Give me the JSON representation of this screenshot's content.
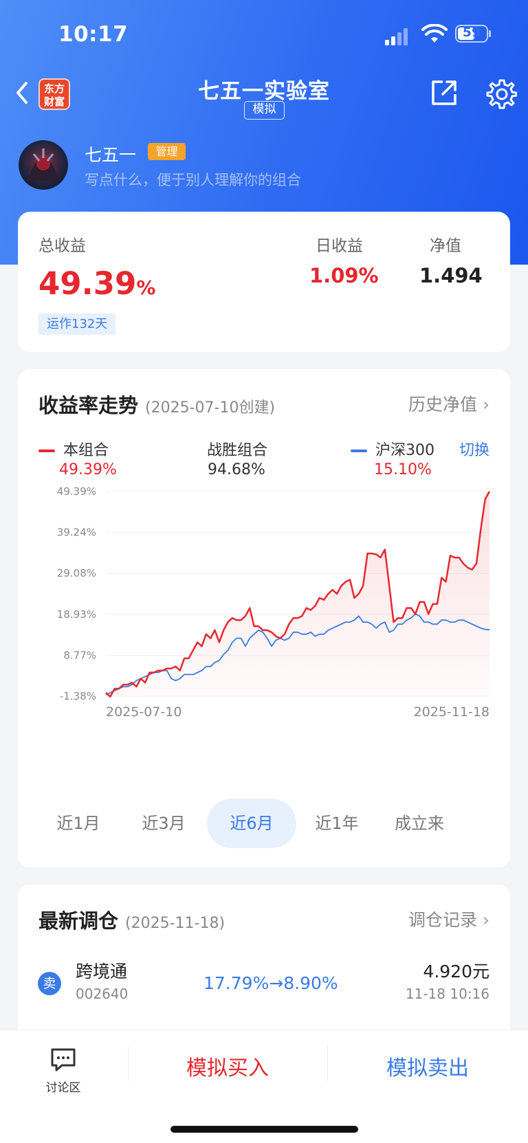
{
  "status_bar": {
    "time": "10:17",
    "battery": "59"
  },
  "nav": {
    "logo_text_1": "东方",
    "logo_text_2": "财富",
    "title": "七五一实验室",
    "tag": "模拟"
  },
  "profile": {
    "name": "七五一",
    "badge": "管理",
    "bio": "写点什么，便于别人理解你的组合"
  },
  "summary": {
    "total_label": "总收益",
    "total_value": "49.39",
    "total_unit": "%",
    "running_days": "运作132天",
    "daily_label": "日收益",
    "daily_value": "1.09%",
    "nav_label": "净值",
    "nav_value": "1.494"
  },
  "trend": {
    "title": "收益率走势",
    "created": "(2025-07-10创建)",
    "history_link": "历史净值",
    "switch": "切换",
    "legend": [
      {
        "name": "本组合",
        "value": "49.39%",
        "color": "#e6272f"
      },
      {
        "name": "战胜组合",
        "value": "94.68%",
        "color": "#333333"
      },
      {
        "name": "沪深300",
        "value": "15.10%",
        "color": "#3a7be4"
      }
    ],
    "tabs": [
      "近1月",
      "近3月",
      "近6月",
      "近1年",
      "成立来"
    ],
    "active_tab": 2
  },
  "chart_data": {
    "type": "line",
    "y_ticks": [
      "49.39%",
      "39.24%",
      "29.08%",
      "18.93%",
      "8.77%",
      "-1.38%"
    ],
    "ylim": [
      -1.38,
      49.39
    ],
    "x_labels": [
      "2025-07-10",
      "2025-11-18"
    ],
    "series": [
      {
        "name": "本组合",
        "color": "#e6272f",
        "values": [
          -0.5,
          -1.5,
          0.5,
          0.5,
          1.5,
          1.5,
          2,
          1,
          3,
          2,
          4.5,
          4.5,
          5,
          5,
          5.5,
          5.5,
          6,
          5,
          8,
          8,
          10,
          12,
          11,
          14,
          13,
          15,
          12,
          15,
          17,
          18,
          17.5,
          17.5,
          18.5,
          20.5,
          16,
          16,
          15,
          15,
          14.5,
          13.5,
          13,
          14,
          16.5,
          18,
          18,
          18.5,
          20.5,
          20,
          21,
          23,
          22.5,
          24,
          25,
          24,
          26,
          27,
          27.5,
          23,
          24,
          26,
          34,
          34,
          33.8,
          33,
          35,
          26,
          17,
          18,
          18,
          20.5,
          20.5,
          19,
          22,
          22,
          19,
          21.5,
          21.5,
          28,
          27,
          33.5,
          33,
          33,
          31.5,
          30.5,
          30,
          31.5,
          40,
          47.5,
          49.39
        ]
      },
      {
        "name": "沪深300",
        "color": "#3a7be4",
        "values": [
          -1,
          -0.5,
          0,
          0.5,
          1,
          1,
          1.5,
          2.5,
          3,
          3.5,
          4,
          4.5,
          4.5,
          5,
          5,
          3,
          2.5,
          3,
          4,
          4,
          4,
          4.5,
          5,
          6,
          6,
          7,
          7.5,
          9,
          10,
          12,
          13,
          13,
          11,
          13,
          14,
          15,
          14.5,
          13,
          11,
          12.5,
          13,
          12.5,
          13,
          14.5,
          14.5,
          14,
          14,
          14.5,
          13.5,
          14,
          14,
          15,
          15.5,
          16,
          16.5,
          17,
          17,
          17.5,
          18.5,
          17,
          17,
          16.5,
          15.5,
          16.5,
          17,
          14.5,
          15,
          16.5,
          16.5,
          17.5,
          18,
          19,
          18.5,
          17,
          17,
          16.5,
          16.5,
          17.5,
          17.5,
          17,
          17,
          17.5,
          17.5,
          17,
          16.5,
          16,
          15.5,
          15.2,
          15.1
        ]
      }
    ]
  },
  "rebalance": {
    "title": "最新调仓",
    "date": "(2025-11-18)",
    "record_link": "调仓记录",
    "items": [
      {
        "action": "卖",
        "name": "跨境通",
        "code": "002640",
        "ratio": "17.79%→8.90%",
        "price": "4.920元",
        "time": "11-18 10:16"
      }
    ]
  },
  "bottom_bar": {
    "discuss": "讨论区",
    "buy": "模拟买入",
    "sell": "模拟卖出"
  }
}
